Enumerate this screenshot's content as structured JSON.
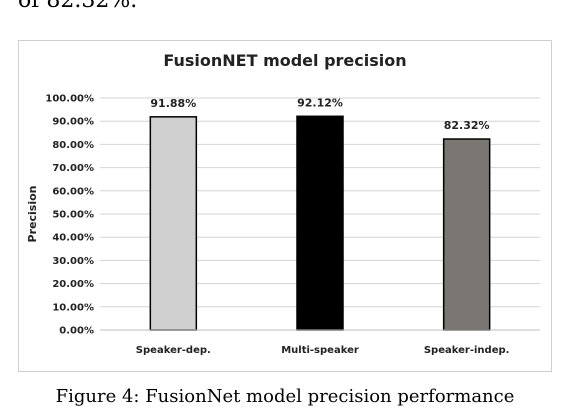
{
  "top_text": "of 82.32%.",
  "caption": "Figure 4: FusionNet model precision performance",
  "chart_data": {
    "type": "bar",
    "title": "FusionNET model precision",
    "xlabel": "",
    "ylabel": "Precision",
    "categories": [
      "Speaker-dep.",
      "Multi-speaker",
      "Speaker-indep."
    ],
    "values": [
      91.88,
      92.12,
      82.32
    ],
    "data_labels": [
      "91.88%",
      "92.12%",
      "82.32%"
    ],
    "ylim": [
      0,
      100
    ],
    "yticks": [
      "0.00%",
      "10.00%",
      "20.00%",
      "30.00%",
      "40.00%",
      "50.00%",
      "60.00%",
      "70.00%",
      "80.00%",
      "90.00%",
      "100.00%"
    ],
    "bar_colors": [
      "#d0d0d0",
      "#000000",
      "#7a7772"
    ],
    "grid": true,
    "legend": "none"
  }
}
